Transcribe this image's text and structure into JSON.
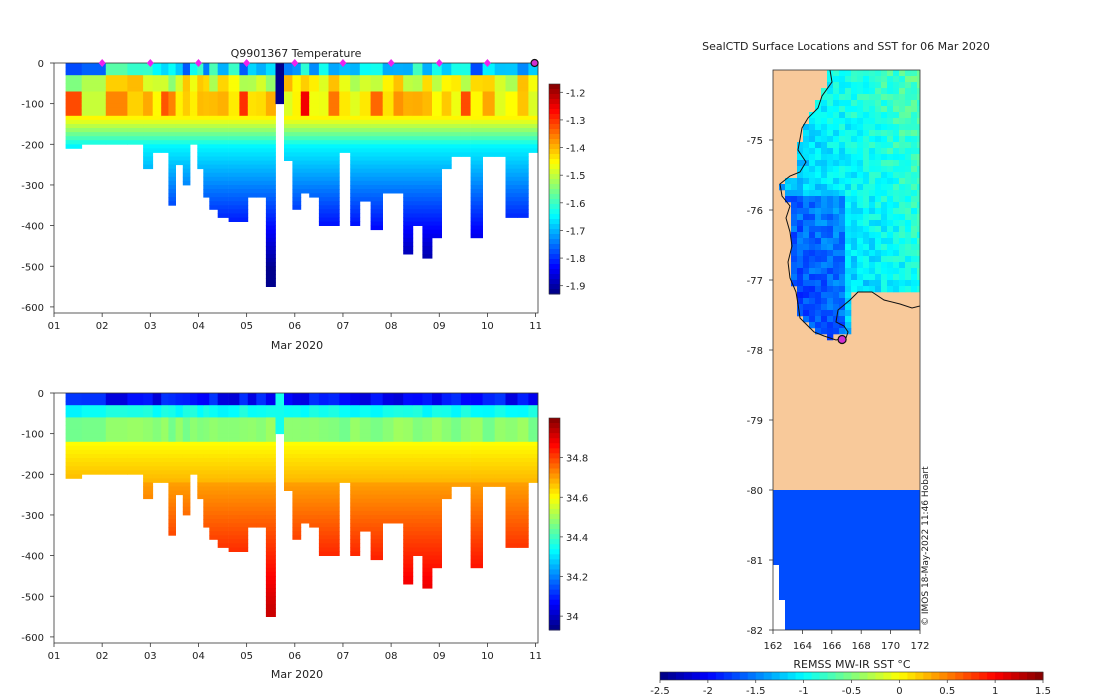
{
  "chart_data": [
    {
      "type": "heatmap",
      "id": "temperature-section",
      "title": "Q9901367  Temperature",
      "xlabel": "Mar 2020",
      "ylabel": "",
      "x_ticks": [
        "01",
        "02",
        "03",
        "04",
        "05",
        "06",
        "07",
        "08",
        "09",
        "10",
        "11"
      ],
      "xlim": [
        1,
        11.05
      ],
      "ylim": [
        -615,
        0
      ],
      "y_ticks": [
        0,
        -100,
        -200,
        -300,
        -400,
        -500,
        -600
      ],
      "colorbar": {
        "ticks": [
          -1.2,
          -1.3,
          -1.4,
          -1.5,
          -1.6,
          -1.7,
          -1.8,
          -1.9
        ],
        "range": [
          -1.93,
          -1.17
        ]
      },
      "profile_markers": [
        2,
        3,
        4,
        5,
        6,
        7,
        8,
        9,
        10
      ],
      "current_position_day": 11,
      "profile_days": [
        1.3,
        1.85,
        2.3,
        2.75,
        2.95,
        3.15,
        3.3,
        3.45,
        3.6,
        3.75,
        3.9,
        4.05,
        4.15,
        4.3,
        4.5,
        4.75,
        4.95,
        5.1,
        5.3,
        5.5,
        5.7,
        5.85,
        6.05,
        6.2,
        6.4,
        6.6,
        6.8,
        7.05,
        7.25,
        7.45,
        7.7,
        7.95,
        8.15,
        8.35,
        8.55,
        8.75,
        8.95,
        9.15,
        9.35,
        9.55,
        9.75,
        10.05,
        10.25,
        10.5,
        10.75,
        10.95
      ],
      "profile_depths": [
        205,
        200,
        200,
        200,
        260,
        215,
        215,
        345,
        250,
        300,
        200,
        260,
        325,
        360,
        380,
        390,
        390,
        330,
        330,
        545,
        100,
        235,
        355,
        320,
        325,
        400,
        400,
        220,
        400,
        335,
        405,
        315,
        315,
        465,
        400,
        475,
        430,
        260,
        225,
        225,
        430,
        225,
        225,
        380,
        380,
        220
      ]
    },
    {
      "type": "heatmap",
      "id": "salinity-section",
      "title": "",
      "xlabel": "Mar 2020",
      "ylabel": "",
      "x_ticks": [
        "01",
        "02",
        "03",
        "04",
        "05",
        "06",
        "07",
        "08",
        "09",
        "10",
        "11"
      ],
      "xlim": [
        1,
        11.05
      ],
      "ylim": [
        -615,
        0
      ],
      "y_ticks": [
        0,
        -100,
        -200,
        -300,
        -400,
        -500,
        -600
      ],
      "colorbar": {
        "ticks": [
          34.8,
          34.6,
          34.4,
          34.2,
          34
        ],
        "range": [
          33.93,
          35.0
        ]
      }
    },
    {
      "type": "heatmap",
      "id": "sst-map",
      "title": "SealCTD Surface Locations and SST for 06 Mar 2020",
      "xlabel": "",
      "ylabel": "",
      "xlim": [
        162,
        172
      ],
      "ylim": [
        -82,
        -74
      ],
      "x_ticks": [
        "162",
        "164",
        "166",
        "168",
        "170",
        "172"
      ],
      "y_ticks": [
        "-75",
        "-76",
        "-77",
        "-78",
        "-79",
        "-80",
        "-81",
        "-82"
      ],
      "colorbar": {
        "label": "REMSS MW-IR SST °C",
        "ticks": [
          "-2.5",
          "-2",
          "-1.5",
          "-1",
          "-0.5",
          "0",
          "0.5",
          "1",
          "1.5"
        ],
        "range": [
          -2.5,
          1.5
        ]
      },
      "ice_shelf_boundary_lat": -80,
      "seal_location": {
        "lon": 166.7,
        "lat": -77.85
      },
      "credit": "© IMOS 18-May-2022 11:46 Hobart"
    }
  ]
}
